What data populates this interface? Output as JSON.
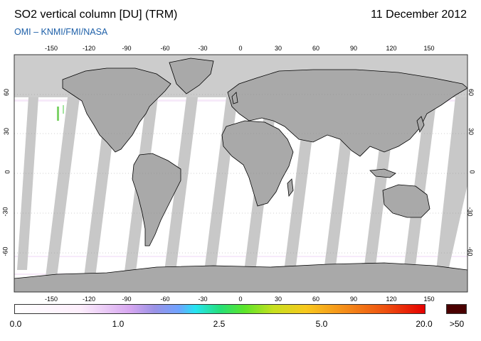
{
  "header": {
    "title": "SO2 vertical column [DU] (TRM)",
    "date": "11 December 2012",
    "subtitle": "OMI  –  KNMI/FMI/NASA"
  },
  "map": {
    "lon_ticks": [
      "-150",
      "-120",
      "-90",
      "-60",
      "-30",
      "0",
      "30",
      "60",
      "90",
      "120",
      "150"
    ],
    "lat_ticks": [
      "60",
      "30",
      "0",
      "-30",
      "-60"
    ],
    "colors": {
      "land_in_darkness": "#cccccc",
      "orbit_gap": "#c8c8c8",
      "overlap_gap": "#a9a9a9",
      "coast": "#000000"
    }
  },
  "colorbar": {
    "labels": [
      "0.0",
      "1.0",
      "2.5",
      "5.0",
      "20.0"
    ],
    "over_label": ">50",
    "over_color": "#4a0000"
  }
}
